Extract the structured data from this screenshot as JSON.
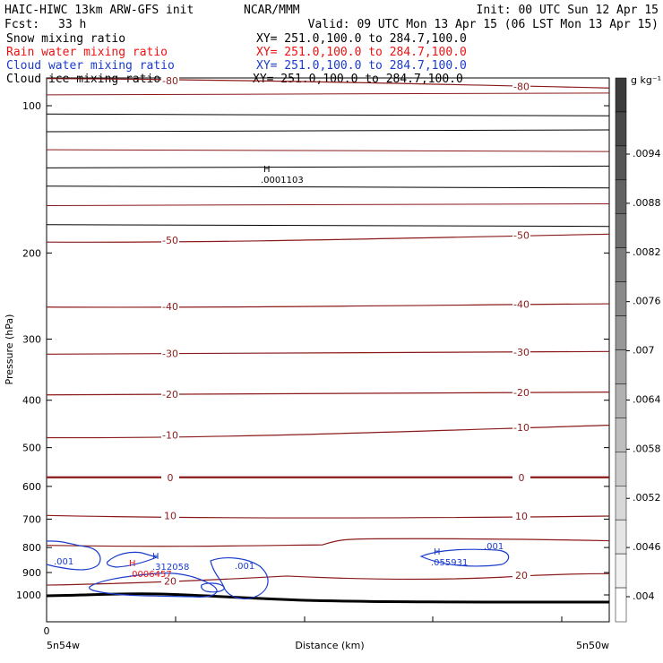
{
  "header": {
    "model": "HAIC-HIWC 13km ARW-GFS init",
    "center": "NCAR/MMM",
    "init": "Init: 00 UTC Sun 12 Apr 15",
    "fcst_label": "Fcst:",
    "fcst_value": "33 h",
    "valid": "Valid: 09 UTC Mon 13 Apr 15 (06 LST Mon 13 Apr 15)"
  },
  "fields": [
    {
      "name": "Snow mixing ratio",
      "xy": "XY= 251.0,100.0 to 284.7,100.0",
      "color": "#000000"
    },
    {
      "name": "Rain water mixing ratio",
      "xy": "XY= 251.0,100.0 to 284.7,100.0",
      "color": "#ff0000"
    },
    {
      "name": "Cloud water mixing ratio",
      "xy": "XY= 251.0,100.0 to 284.7,100.0",
      "color": "#0000ff"
    },
    {
      "name": "Cloud ice mixing ratio",
      "xy": "XY= 251.0,100.0 to 284.7,100.0",
      "color": "#000000"
    }
  ],
  "colors": {
    "isotherm": "#8b1a1a",
    "cloud_water": "#1a3ccc",
    "rain": "#ee1111",
    "ground": "#000000"
  },
  "chart_data": {
    "type": "line",
    "ylabel": "Pressure (hPa)",
    "xlabel": "Distance (km)",
    "x_start_tick": "0",
    "left_point": "5n54w",
    "right_point": "5n50w",
    "y_scale": "log-pressure, inverted",
    "ylim": [
      1050,
      50
    ],
    "yticks": [
      100,
      200,
      300,
      400,
      500,
      600,
      700,
      800,
      900,
      1000
    ],
    "isotherms": [
      {
        "label": "-80",
        "y_left": 88,
        "y_right": 92
      },
      {
        "label": "-50",
        "y_left": 190,
        "y_right": 183
      },
      {
        "label": "-40",
        "y_left": 258,
        "y_right": 254
      },
      {
        "label": "-30",
        "y_left": 322,
        "y_right": 318
      },
      {
        "label": "-20",
        "y_left": 390,
        "y_right": 385
      },
      {
        "label": "-10",
        "y_left": 477,
        "y_right": 450
      },
      {
        "label": "0",
        "y_left": 575,
        "y_right": 575
      },
      {
        "label": "10",
        "y_left": 688,
        "y_right": 690
      },
      {
        "label": "20",
        "y_left": 945,
        "y_right": 905
      }
    ],
    "maxima": [
      {
        "symbol": "H",
        "value": ".0001103",
        "pressure": 235,
        "dist_frac": 0.43
      },
      {
        "symbol": "H",
        "value": ".312058",
        "pressure": 948,
        "dist_frac": 0.18
      },
      {
        "symbol": "H",
        "value": ".0006457",
        "pressure": 965,
        "dist_frac": 0.16
      },
      {
        "symbol": "H",
        "value": ".055931",
        "pressure": 940,
        "dist_frac": 0.71
      }
    ],
    "cloud_water_contour": ".001",
    "colorbar": {
      "unit": "g kg⁻¹",
      "ticks": [
        ".004",
        ".0046",
        ".0052",
        ".0058",
        ".0064",
        ".007",
        ".0076",
        ".0082",
        ".0088",
        ".0094"
      ]
    }
  }
}
